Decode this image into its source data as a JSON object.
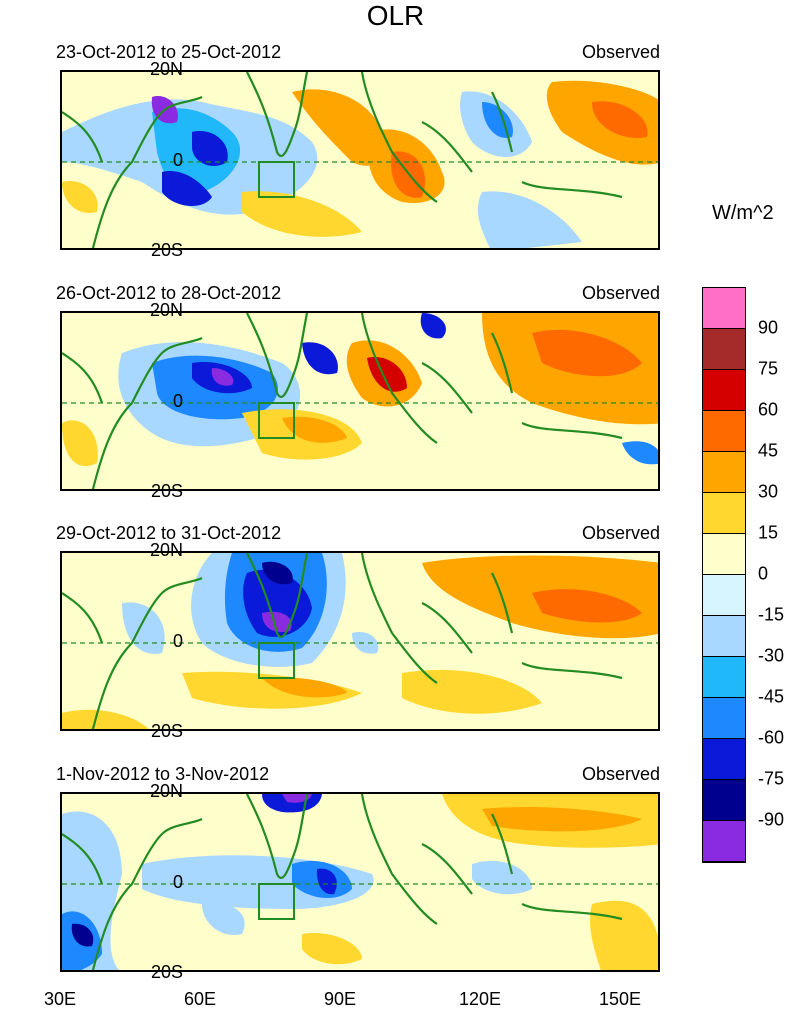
{
  "title": "OLR",
  "units": "W/m^2",
  "panels": [
    {
      "date_range": "23-Oct-2012 to 25-Oct-2012",
      "label": "Observed"
    },
    {
      "date_range": "26-Oct-2012 to 28-Oct-2012",
      "label": "Observed"
    },
    {
      "date_range": "29-Oct-2012 to 31-Oct-2012",
      "label": "Observed"
    },
    {
      "date_range": "1-Nov-2012 to 3-Nov-2012",
      "label": "Observed"
    }
  ],
  "lat_labels": {
    "north": "20N",
    "equator": "0",
    "south": "20S"
  },
  "lon_labels": [
    "30E",
    "60E",
    "90E",
    "120E",
    "150E"
  ],
  "colorbar": {
    "levels": [
      "90",
      "75",
      "60",
      "45",
      "30",
      "15",
      "0",
      "-15",
      "-30",
      "-45",
      "-60",
      "-75",
      "-90"
    ],
    "colors": [
      "#ff6ec7",
      "#a52a2a",
      "#d40000",
      "#ff6a00",
      "#ffa500",
      "#ffd72e",
      "#ffffcc",
      "#d6f5ff",
      "#a8d8ff",
      "#20b8f8",
      "#1e88ff",
      "#0a1ad8",
      "#00008f",
      "#8a2be2"
    ]
  },
  "colors": {
    "coast": "#228b22",
    "box": "#228b22",
    "equator": "#228b22"
  }
}
